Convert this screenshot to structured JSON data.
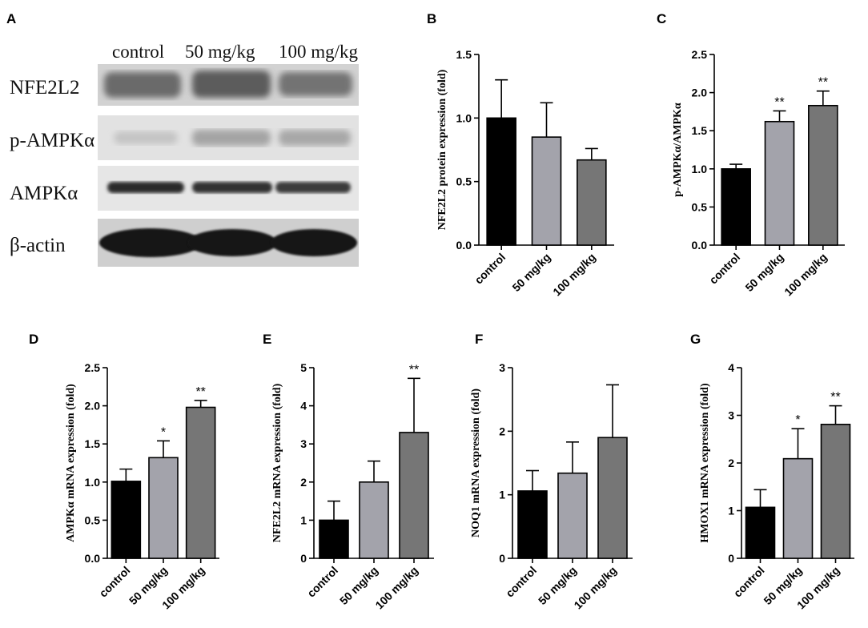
{
  "panels": {
    "a": "A",
    "b": "B",
    "c": "C",
    "d": "D",
    "e": "E",
    "f": "F",
    "g": "G"
  },
  "blot": {
    "columns": [
      "control",
      "50 mg/kg",
      "100 mg/kg"
    ],
    "rows": [
      "NFE2L2",
      "p-AMPKα",
      "AMPKα",
      "β-actin"
    ]
  },
  "colors": {
    "control": "#000000",
    "50 mg/kg": "#a3a3ab",
    "100 mg/kg": "#767676"
  },
  "chart_data": [
    {
      "panel": "B",
      "type": "bar",
      "categories": [
        "control",
        "50 mg/kg",
        "100 mg/kg"
      ],
      "values": [
        1.0,
        0.85,
        0.67
      ],
      "errors": [
        0.3,
        0.27,
        0.09
      ],
      "significance": [
        "",
        "",
        ""
      ],
      "ylabel": "NFE2L2 protein expression (fold)",
      "ylim": [
        0,
        1.5
      ],
      "yticks": [
        0.0,
        0.5,
        1.0,
        1.5
      ],
      "ytick_labels": [
        "0.0",
        "0.5",
        "1.0",
        "1.5"
      ]
    },
    {
      "panel": "C",
      "type": "bar",
      "categories": [
        "control",
        "50 mg/kg",
        "100 mg/kg"
      ],
      "values": [
        1.0,
        1.62,
        1.83
      ],
      "errors": [
        0.06,
        0.14,
        0.19
      ],
      "significance": [
        "",
        "**",
        "**"
      ],
      "ylabel": "p-AMPKα/AMPKα",
      "ylim": [
        0,
        2.5
      ],
      "yticks": [
        0.0,
        0.5,
        1.0,
        1.5,
        2.0,
        2.5
      ],
      "ytick_labels": [
        "0.0",
        "0.5",
        "1.0",
        "1.5",
        "2.0",
        "2.5"
      ]
    },
    {
      "panel": "D",
      "type": "bar",
      "categories": [
        "control",
        "50 mg/kg",
        "100 mg/kg"
      ],
      "values": [
        1.01,
        1.32,
        1.98
      ],
      "errors": [
        0.16,
        0.22,
        0.09
      ],
      "significance": [
        "",
        "*",
        "**"
      ],
      "ylabel": "AMPKα mRNA expression (fold)",
      "ylim": [
        0,
        2.5
      ],
      "yticks": [
        0.0,
        0.5,
        1.0,
        1.5,
        2.0,
        2.5
      ],
      "ytick_labels": [
        "0.0",
        "0.5",
        "1.0",
        "1.5",
        "2.0",
        "2.5"
      ]
    },
    {
      "panel": "E",
      "type": "bar",
      "categories": [
        "control",
        "50 mg/kg",
        "100 mg/kg"
      ],
      "values": [
        1.0,
        2.0,
        3.3
      ],
      "errors": [
        0.5,
        0.55,
        1.42
      ],
      "significance": [
        "",
        "",
        "**"
      ],
      "ylabel": "NFE2L2 mRNA expression (fold)",
      "ylim": [
        0,
        5
      ],
      "yticks": [
        0,
        1,
        2,
        3,
        4,
        5
      ],
      "ytick_labels": [
        "0",
        "1",
        "2",
        "3",
        "4",
        "5"
      ]
    },
    {
      "panel": "F",
      "type": "bar",
      "categories": [
        "control",
        "50 mg/kg",
        "100 mg/kg"
      ],
      "values": [
        1.06,
        1.34,
        1.9
      ],
      "errors": [
        0.32,
        0.49,
        0.83
      ],
      "significance": [
        "",
        "",
        ""
      ],
      "ylabel": "NOQ1 mRNA expression (fold)",
      "ylim": [
        0,
        3
      ],
      "yticks": [
        0,
        1,
        2,
        3
      ],
      "ytick_labels": [
        "0",
        "1",
        "2",
        "3"
      ]
    },
    {
      "panel": "G",
      "type": "bar",
      "categories": [
        "control",
        "50 mg/kg",
        "100 mg/kg"
      ],
      "values": [
        1.07,
        2.09,
        2.81
      ],
      "errors": [
        0.37,
        0.63,
        0.39
      ],
      "significance": [
        "",
        "*",
        "**"
      ],
      "ylabel": "HMOX1 mRNA expression (fold)",
      "ylim": [
        0,
        4
      ],
      "yticks": [
        0,
        1,
        2,
        3,
        4
      ],
      "ytick_labels": [
        "0",
        "1",
        "2",
        "3",
        "4"
      ]
    }
  ]
}
